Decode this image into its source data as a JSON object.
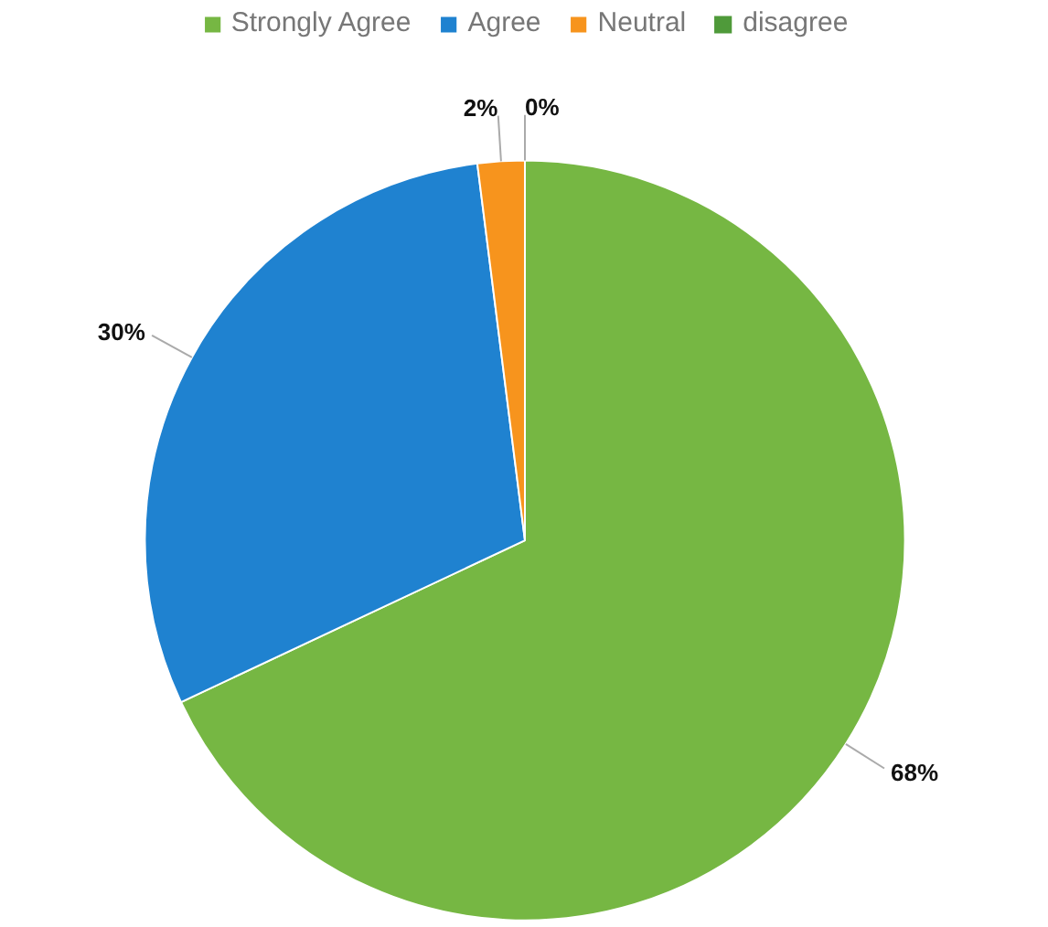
{
  "chart_data": {
    "type": "pie",
    "categories": [
      "Strongly Agree",
      "Agree",
      "Neutral",
      "disagree"
    ],
    "values": [
      68,
      30,
      2,
      0
    ],
    "colors": [
      "#76b743",
      "#1f82d0",
      "#f7941d",
      "#4f9a3a"
    ],
    "value_labels": [
      "68%",
      "30%",
      "2%",
      "0%"
    ],
    "legend": "top"
  }
}
